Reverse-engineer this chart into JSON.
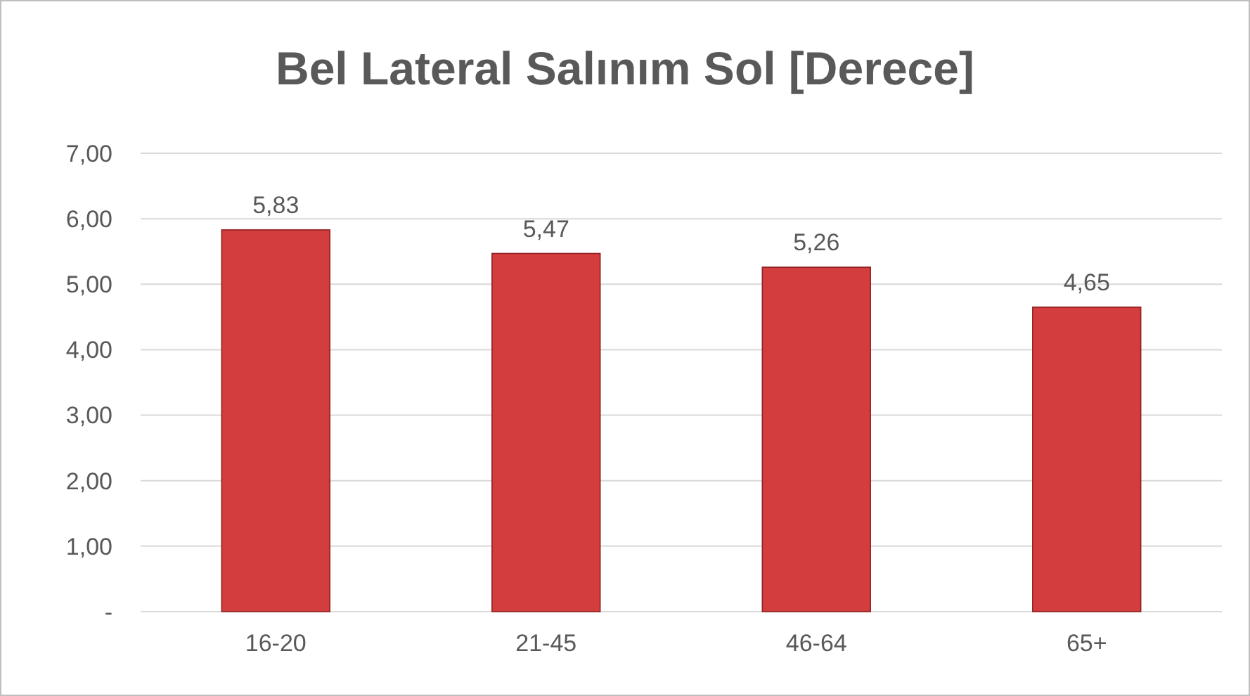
{
  "chart_data": {
    "type": "bar",
    "title": "Bel Lateral Salınım Sol [Derece]",
    "categories": [
      "16-20",
      "21-45",
      "46-64",
      "65+"
    ],
    "values": [
      5.83,
      5.47,
      5.26,
      4.65
    ],
    "value_labels": [
      "5,83",
      "5,47",
      "5,26",
      "4,65"
    ],
    "color": "#d43d3d",
    "ylim": [
      0,
      7
    ],
    "yticks": [
      {
        "value": 0,
        "label": "-"
      },
      {
        "value": 1,
        "label": "1,00"
      },
      {
        "value": 2,
        "label": "2,00"
      },
      {
        "value": 3,
        "label": "3,00"
      },
      {
        "value": 4,
        "label": "4,00"
      },
      {
        "value": 5,
        "label": "5,00"
      },
      {
        "value": 6,
        "label": "6,00"
      },
      {
        "value": 7,
        "label": "7,00"
      }
    ],
    "grid": "y"
  }
}
